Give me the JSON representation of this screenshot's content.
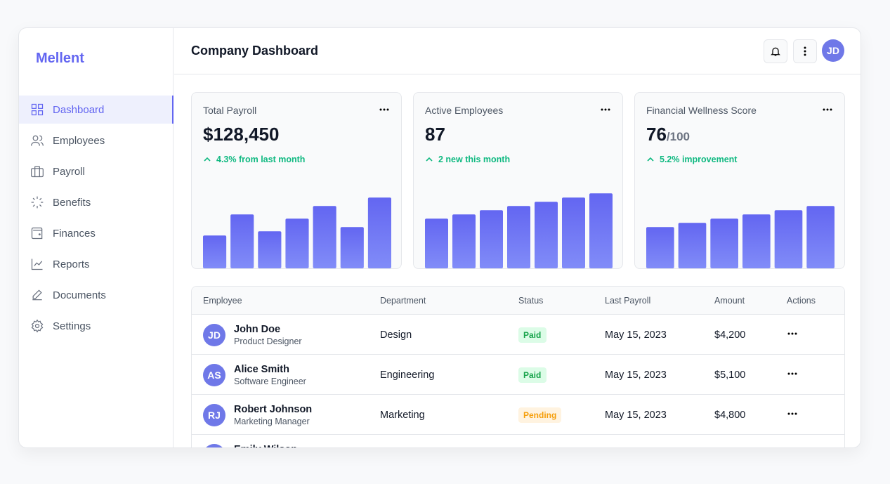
{
  "sidebar": {
    "logo": "Mellent",
    "active": 0,
    "nav": [
      "Dashboard",
      "Employees",
      "Payroll",
      "Benefits",
      "Finances",
      "Reports",
      "Documents",
      "Settings"
    ]
  },
  "header": {
    "title": "Company Dashboard",
    "avatar": "JD"
  },
  "cards": [
    {
      "title": "Total Payroll",
      "value": "$128,450",
      "change": "4.3% from last month",
      "bars": [
        39,
        64,
        44,
        59,
        74,
        49,
        84
      ]
    },
    {
      "title": "Active Employees",
      "value": "87",
      "change": "2 new this month",
      "bars": [
        59,
        64,
        69,
        74,
        79,
        84,
        89
      ]
    },
    {
      "title": "Financial Wellness Score",
      "value": "76",
      "suffix": "/100",
      "change": "5.2% improvement",
      "bars": [
        49,
        54,
        59,
        64,
        69,
        74
      ]
    }
  ],
  "table": {
    "columns": [
      "Employee",
      "Department",
      "Status",
      "Last Payroll",
      "Amount",
      "Actions"
    ],
    "rows": [
      {
        "initials": "JD",
        "name": "John Doe",
        "role": "Product Designer",
        "department": "Design",
        "status": "Paid",
        "status_color": "#16a34a",
        "status_bg": "#dcfce7",
        "date": "May 15, 2023",
        "amount": "$4,200"
      },
      {
        "initials": "AS",
        "name": "Alice Smith",
        "role": "Software Engineer",
        "department": "Engineering",
        "status": "Paid",
        "status_color": "#16a34a",
        "status_bg": "#dcfce7",
        "date": "May 15, 2023",
        "amount": "$5,100"
      },
      {
        "initials": "RJ",
        "name": "Robert Johnson",
        "role": "Marketing Manager",
        "department": "Marketing",
        "status": "Pending",
        "status_color": "#f59e0b",
        "status_bg": "#fff3e0",
        "date": "May 15, 2023",
        "amount": "$4,800"
      },
      {
        "name": "Emily Wilson",
        "status_color": "#16a34a",
        "status_bg": "#dcfce7"
      }
    ]
  }
}
